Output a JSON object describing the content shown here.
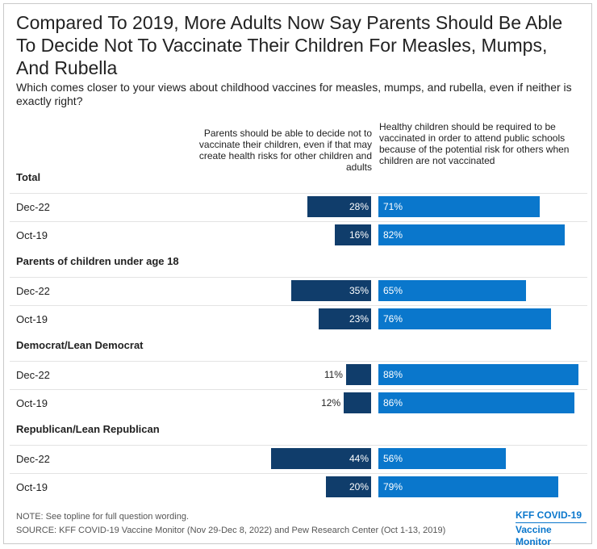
{
  "title": "Compared To 2019, More Adults Now Say Parents Should Be Able To Decide Not To Vaccinate Their Children For Measles, Mumps, And Rubella",
  "subtitle": "Which comes closer to your views about childhood vaccines for measles, mumps, and rubella, even if neither is exactly right?",
  "chart_data": {
    "type": "bar",
    "orientation": "horizontal-diverging",
    "series": [
      {
        "name": "Parents should be able to decide not to vaccinate their children, even if that may create health risks for other children and adults",
        "color": "#103d6b"
      },
      {
        "name": "Healthy children should be required to be vaccinated in order to attend public schools because of the potential risk for others when children are not vaccinated",
        "color": "#0a77cc"
      }
    ],
    "groups": [
      {
        "label": "Total",
        "rows": [
          {
            "label": "Dec-22",
            "left": 28,
            "right": 71,
            "left_text": "28%",
            "right_text": "71%"
          },
          {
            "label": "Oct-19",
            "left": 16,
            "right": 82,
            "left_text": "16%",
            "right_text": "82%"
          }
        ]
      },
      {
        "label": "Parents of children under age 18",
        "rows": [
          {
            "label": "Dec-22",
            "left": 35,
            "right": 65,
            "left_text": "35%",
            "right_text": "65%"
          },
          {
            "label": "Oct-19",
            "left": 23,
            "right": 76,
            "left_text": "23%",
            "right_text": "76%"
          }
        ]
      },
      {
        "label": "Democrat/Lean Democrat",
        "rows": [
          {
            "label": "Dec-22",
            "left": 11,
            "right": 88,
            "left_text": "11%",
            "right_text": "88%"
          },
          {
            "label": "Oct-19",
            "left": 12,
            "right": 86,
            "left_text": "12%",
            "right_text": "86%"
          }
        ]
      },
      {
        "label": "Republican/Lean Republican",
        "rows": [
          {
            "label": "Dec-22",
            "left": 44,
            "right": 56,
            "left_text": "44%",
            "right_text": "56%"
          },
          {
            "label": "Oct-19",
            "left": 20,
            "right": 79,
            "left_text": "20%",
            "right_text": "79%"
          }
        ]
      }
    ],
    "units": "%",
    "xlim": [
      0,
      100
    ]
  },
  "footer": {
    "note": "NOTE: See topline for full question wording.",
    "source": "SOURCE: KFF COVID-19 Vaccine Monitor (Nov 29-Dec 8, 2022) and Pew Research Center (Oct 1-13, 2019)"
  },
  "logo": {
    "line1": "KFF COVID-19",
    "line2": "Vaccine Monitor"
  }
}
